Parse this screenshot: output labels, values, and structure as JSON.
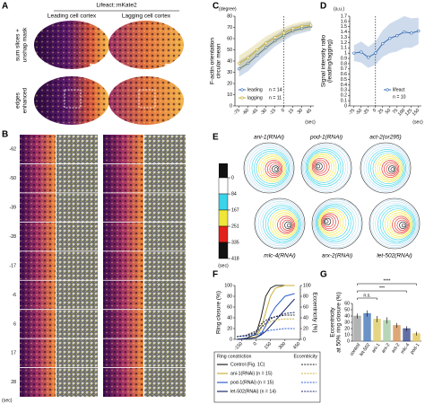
{
  "panel_letters": [
    "A",
    "B",
    "C",
    "D",
    "E",
    "F",
    "G"
  ],
  "panel_a": {
    "title": "Lifeact::mKate2",
    "columns": [
      "Leading cell cortex",
      "Lagging cell cortex"
    ],
    "rows": [
      [
        "sum slices +",
        "unshap mask"
      ],
      [
        "edges",
        "enhanced"
      ]
    ]
  },
  "panel_b": {
    "times": [
      -62,
      -50,
      -39,
      -28,
      -17,
      -6,
      6,
      17,
      28
    ],
    "unit": "(sec)"
  },
  "panel_e": {
    "plots": [
      "ani-1(RNAi)",
      "pod-1(RNAi)",
      "act-2(or295)",
      "mlc-4(RNAi)",
      "arx-2(RNAi)",
      "let-502(RNAi)"
    ],
    "colorbar": {
      "ticks": [
        0,
        84,
        167,
        251,
        335,
        418
      ],
      "colors": [
        "#ffffff",
        "#39d3ea",
        "#f0e63a",
        "#e3211c",
        "#111111"
      ],
      "unit": "(sec)"
    }
  },
  "chart_data": [
    {
      "type": "line",
      "y_unit": "(degree)",
      "y_label": [
        "F-actin orientation",
        "circular mean"
      ],
      "x_label": "(sec)",
      "x": [
        -75,
        -60,
        -45,
        -30,
        -15,
        0,
        15,
        30,
        45
      ],
      "xlim": [
        -82,
        50
      ],
      "xticks": [
        -75,
        -60,
        -45,
        -30,
        -15,
        0,
        15,
        30,
        45
      ],
      "ylim": [
        0,
        80
      ],
      "yticks": [
        0,
        10,
        20,
        30,
        40,
        50,
        60,
        70,
        80
      ],
      "vline": 0,
      "markers": true,
      "series": [
        {
          "name": "leading",
          "n_label": "n = 14",
          "color": "#3a6fb5",
          "values": [
            33,
            38,
            45,
            52,
            58,
            63,
            67,
            69,
            71
          ],
          "errors": [
            7,
            7,
            6,
            6,
            5,
            5,
            4,
            4,
            4
          ]
        },
        {
          "name": "lagging",
          "n_label": "n = 11",
          "color": "#c3ad35",
          "values": [
            38,
            43,
            50,
            56,
            61,
            65,
            69,
            71,
            72
          ],
          "errors": [
            7,
            7,
            6,
            6,
            5,
            5,
            4,
            4,
            4
          ]
        }
      ]
    },
    {
      "type": "line",
      "y_unit": "(a.u.)",
      "y_label": [
        "Signal intensity ratio",
        "(leading/lagging)"
      ],
      "x_label": "(sec)",
      "x": [
        -75,
        -50,
        -25,
        0,
        25,
        50,
        75,
        100,
        125,
        150
      ],
      "xlim": [
        -90,
        160
      ],
      "xticks": [
        -75,
        -50,
        -25,
        0,
        25,
        50,
        75,
        100,
        125,
        150
      ],
      "ylim": [
        0,
        1.7
      ],
      "yticks": [
        0,
        0.1,
        0.2,
        0.3,
        0.4,
        0.5,
        0.6,
        0.7,
        0.8,
        0.9,
        1,
        1.1,
        1.2,
        1.3,
        1.4,
        1.5,
        1.6,
        1.7
      ],
      "vline": 0,
      "markers": true,
      "series": [
        {
          "name": "lifeact",
          "n_label": "n = 10",
          "color": "#3a6fb5",
          "values": [
            1.0,
            1.02,
            0.92,
            1.0,
            1.18,
            1.28,
            1.33,
            1.4,
            1.38,
            1.42
          ],
          "errors": [
            0.15,
            0.2,
            0.2,
            0.22,
            0.25,
            0.28,
            0.3,
            0.3,
            0.28,
            0.25
          ]
        }
      ]
    },
    {
      "type": "line",
      "y_label": "Ring closure (%)",
      "y2_label": "Eccentricity (%)",
      "legend_headers": [
        "Ring constriction",
        "Eccentricity"
      ],
      "x": [
        -200,
        -100,
        0,
        50,
        100,
        150,
        200,
        300,
        400
      ],
      "xlim": [
        -220,
        460
      ],
      "xticks": [
        -150,
        0,
        150,
        300,
        450
      ],
      "ylim": [
        0,
        100
      ],
      "yticks": [
        0,
        20,
        40,
        60,
        80,
        100
      ],
      "y2lim": [
        0,
        100
      ],
      "y2ticks": [
        0,
        20,
        40,
        60,
        80,
        100
      ],
      "series": [
        {
          "name": "Control (Fig. 1C)",
          "color": "#222222",
          "values": [
            0,
            2,
            10,
            40,
            80,
            95,
            100,
            100,
            100
          ]
        },
        {
          "name": "ani-1(RNAi) (n = 15)",
          "color": "#c9b23a",
          "values": [
            0,
            1,
            5,
            20,
            50,
            80,
            95,
            100,
            100
          ]
        },
        {
          "name": "pod-1(RNAi) (n = 15)",
          "color": "#2f5fd0",
          "values": [
            0,
            1,
            3,
            10,
            25,
            45,
            60,
            80,
            85
          ]
        },
        {
          "name": "let-502(RNAi) (n = 14)",
          "color": "#1b2a6b",
          "values": [
            0,
            1,
            3,
            8,
            15,
            25,
            35,
            55,
            75
          ]
        },
        {
          "color": "#222222",
          "axis": "y2",
          "dash": true,
          "values": [
            5,
            8,
            15,
            28,
            35,
            40,
            42,
            45,
            45
          ]
        },
        {
          "color": "#c9b23a",
          "axis": "y2",
          "dash": true,
          "values": [
            5,
            7,
            12,
            20,
            28,
            33,
            36,
            38,
            38
          ]
        },
        {
          "color": "#2f5fd0",
          "axis": "y2",
          "dash": true,
          "values": [
            5,
            6,
            8,
            12,
            15,
            17,
            18,
            20,
            20
          ]
        },
        {
          "color": "#1b2a6b",
          "axis": "y2",
          "dash": true,
          "values": [
            5,
            7,
            12,
            22,
            30,
            38,
            42,
            48,
            50
          ]
        }
      ]
    },
    {
      "type": "bar",
      "y_label": [
        "Eccentricity",
        "at 50% ring closure (%)"
      ],
      "categories": [
        "control",
        "let-502",
        "ani-1",
        "arx-2",
        "act-2",
        "mlc-4",
        "pod-1"
      ],
      "values": [
        40,
        44,
        35,
        33,
        25,
        20,
        12
      ],
      "errors": [
        4,
        5,
        5,
        5,
        4,
        4,
        3
      ],
      "colors": [
        "#9a9a9a",
        "#3a6fb5",
        "#d9c75a",
        "#9fc8a0",
        "#d28b4a",
        "#2c3f86",
        "#e0c24a"
      ],
      "ylim": [
        0,
        60
      ],
      "yticks": [
        0,
        10,
        20,
        30,
        40,
        50,
        60
      ],
      "annotations": [
        "****",
        "***",
        "n.s."
      ]
    }
  ]
}
